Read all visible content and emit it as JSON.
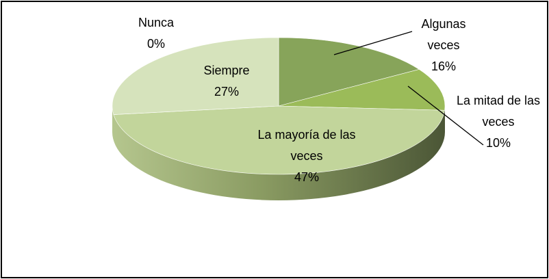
{
  "chart_data": {
    "type": "pie",
    "categories": [
      "Algunas veces",
      "La mitad de las veces",
      "La mayoría de las veces",
      "Siempre",
      "Nunca"
    ],
    "values": [
      16,
      10,
      47,
      27,
      0
    ],
    "value_labels": [
      "16%",
      "10%",
      "47%",
      "27%",
      "0%"
    ],
    "colors": [
      "#87a45a",
      "#9bbb59",
      "#c2d59b",
      "#d6e3bc",
      "#eaf1dd"
    ],
    "three_d": true
  }
}
